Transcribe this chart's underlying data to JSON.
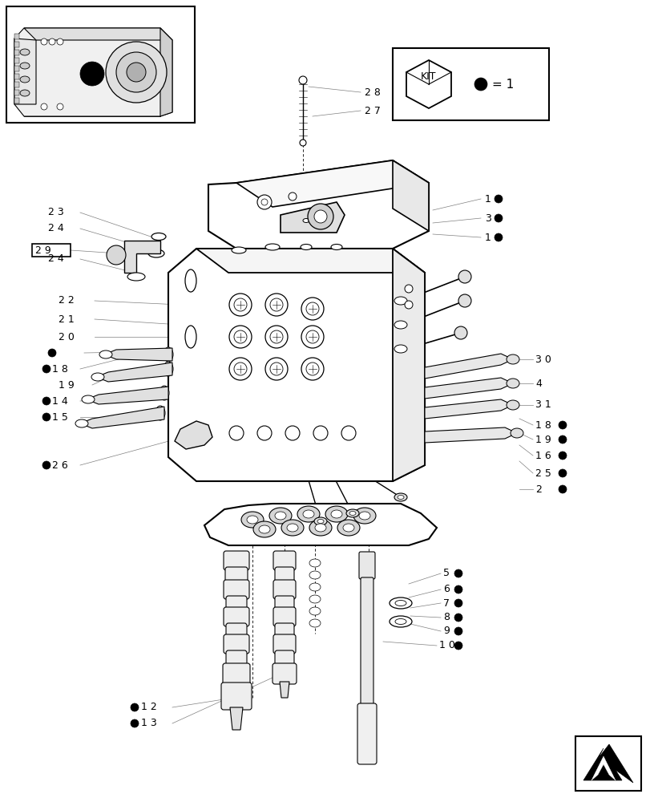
{
  "bg_color": "#ffffff",
  "figsize": [
    8.12,
    10.0
  ],
  "dpi": 100
}
